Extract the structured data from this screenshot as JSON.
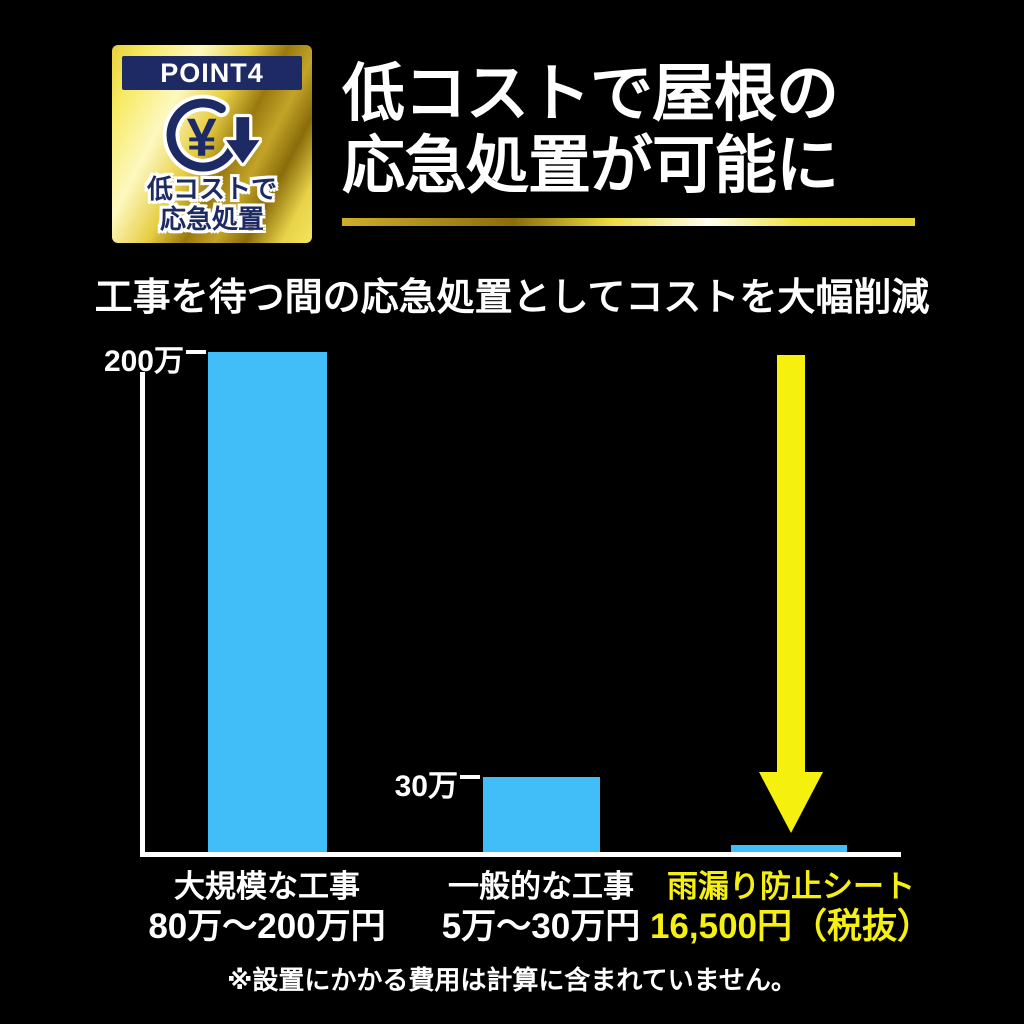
{
  "badge": {
    "point_label": "POINT4",
    "icon": "yen-coin-down-arrow-icon",
    "yen_symbol": "¥",
    "caption_line1": "低コストで",
    "caption_line2": "応急処置"
  },
  "title": {
    "line1": "低コストで屋根の",
    "line2": "応急処置が可能に"
  },
  "subtitle": "工事を待つ間の応急処置としてコストを大幅削減",
  "chart_data": {
    "type": "bar",
    "categories": [
      "大規模な工事",
      "一般的な工事",
      "雨漏り防止シート"
    ],
    "category_sublabels": [
      "80万〜200万円",
      "5万〜30万円",
      "16,500円（税抜）"
    ],
    "values": [
      2000000,
      300000,
      16500
    ],
    "value_unit": "円",
    "yticks": [
      {
        "label": "200万",
        "value": 2000000
      },
      {
        "label": "30万",
        "value": 300000
      }
    ],
    "ylim": [
      0,
      2000000
    ],
    "grid": false,
    "legend": "none",
    "bar_color": "#41bdf7",
    "axis_color": "#ffffff",
    "highlight_index": 2,
    "highlight_arrow_color": "#f5f00e"
  },
  "footnote": "※設置にかかる費用は計算に含まれていません。",
  "colors": {
    "background": "#000000",
    "navy": "#1e2a64",
    "gold": "#e6cd41",
    "bar_blue": "#41bdf7",
    "arrow_yellow": "#f5f00e",
    "highlight_text_yellow": "#f5ef13",
    "text_white": "#ffffff"
  }
}
